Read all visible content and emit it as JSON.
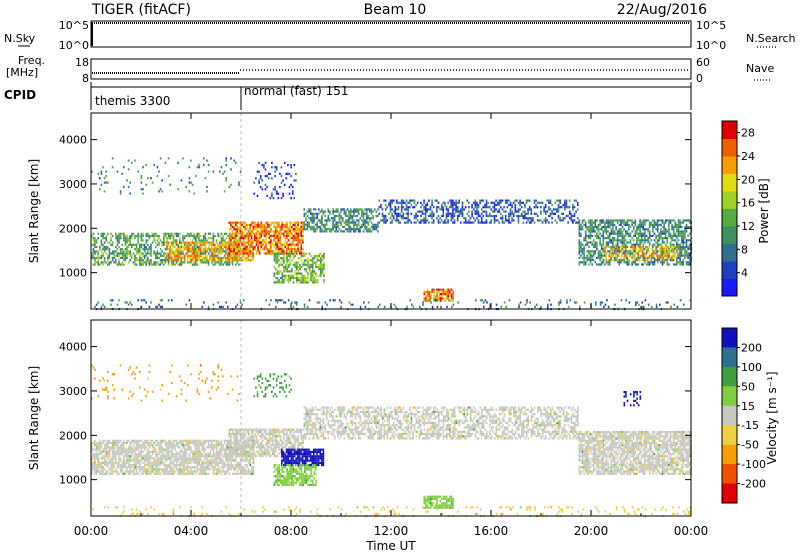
{
  "header": {
    "station": "TIGER (fitACF)",
    "beam": "Beam 10",
    "date": "22/Aug/2016"
  },
  "strip_panels": {
    "nsky": {
      "label": "N.Sky",
      "ticks_left": [
        "10^5",
        "10^0"
      ],
      "ticks_right": [
        "10^5",
        "10^0"
      ],
      "right_label": "N.Search",
      "log_scale": true
    },
    "freq": {
      "label_line1": "Freq.",
      "label_line2": "[MHz]",
      "ticks_left": [
        "18",
        "8"
      ],
      "ticks_right": [
        "60",
        "0"
      ],
      "right_label": "Nave"
    },
    "cpid": {
      "label": "CPID",
      "modes": [
        {
          "name": "themis",
          "id": "3300",
          "start_hour": 0,
          "end_hour": 6
        },
        {
          "name": "normal (fast)",
          "id": "151",
          "start_hour": 6,
          "end_hour": 24
        }
      ]
    }
  },
  "chart_data": [
    {
      "type": "heatmap",
      "title": "",
      "parameter": "Power",
      "ylabel": "Slant Range [km]",
      "xlabel": "",
      "xlim_hours": [
        0,
        24
      ],
      "ylim": [
        180,
        4600
      ],
      "ytick_values": [
        1000,
        2000,
        3000,
        4000
      ],
      "ytick_labels": [
        "1000",
        "2000",
        "3000",
        "4000"
      ],
      "colorbar": {
        "label": "Power [dB]",
        "ticks": [
          4,
          8,
          12,
          16,
          20,
          24,
          28
        ],
        "range": [
          0,
          30
        ],
        "stops": [
          "#1a1aff",
          "#1f3fbf",
          "#2f6f8f",
          "#3f8f5f",
          "#55aa40",
          "#9dd020",
          "#e0dd10",
          "#f5a000",
          "#f06000",
          "#e00000"
        ]
      },
      "regions": [
        {
          "t0": 0.0,
          "t1": 6.0,
          "r0": 1200,
          "r1": 1900,
          "value": 12,
          "density": 0.55
        },
        {
          "t0": 3.0,
          "t1": 6.5,
          "r0": 1300,
          "r1": 1700,
          "value": 22,
          "density": 0.7
        },
        {
          "t0": 5.5,
          "t1": 8.5,
          "r0": 1450,
          "r1": 2150,
          "value": 24,
          "density": 0.75
        },
        {
          "t0": 7.3,
          "t1": 9.3,
          "r0": 800,
          "r1": 1450,
          "value": 14,
          "density": 0.6
        },
        {
          "t0": 8.5,
          "t1": 11.5,
          "r0": 1950,
          "r1": 2450,
          "value": 10,
          "density": 0.6
        },
        {
          "t0": 11.5,
          "t1": 19.5,
          "r0": 2150,
          "r1": 2650,
          "value": 6,
          "density": 0.45
        },
        {
          "t0": 19.5,
          "t1": 24.0,
          "r0": 1200,
          "r1": 2200,
          "value": 10,
          "density": 0.6
        },
        {
          "t0": 20.5,
          "t1": 23.5,
          "r0": 1300,
          "r1": 1600,
          "value": 22,
          "density": 0.5
        },
        {
          "t0": 13.3,
          "t1": 14.5,
          "r0": 380,
          "r1": 640,
          "value": 24,
          "density": 0.8
        },
        {
          "t0": 6.5,
          "t1": 8.2,
          "r0": 2700,
          "r1": 3500,
          "value": 4,
          "density": 0.18
        },
        {
          "t0": 0.0,
          "t1": 24.0,
          "r0": 190,
          "r1": 400,
          "value": 8,
          "density": 0.12
        },
        {
          "t0": 0.0,
          "t1": 6.0,
          "r0": 2800,
          "r1": 3600,
          "value": 10,
          "density": 0.06
        }
      ]
    },
    {
      "type": "heatmap",
      "title": "",
      "parameter": "Velocity",
      "ylabel": "Slant Range [km]",
      "xlabel": "Time UT",
      "xlim_hours": [
        0,
        24
      ],
      "xtick_labels": [
        "00:00",
        "04:00",
        "08:00",
        "12:00",
        "16:00",
        "20:00",
        "00:00"
      ],
      "ylim": [
        180,
        4600
      ],
      "ytick_values": [
        1000,
        2000,
        3000,
        4000
      ],
      "ytick_labels": [
        "1000",
        "2000",
        "3000",
        "4000"
      ],
      "colorbar": {
        "label": "Velocity [m s⁻¹]",
        "ticks": [
          "200",
          "100",
          "50",
          "15",
          "-15",
          "-50",
          "-100",
          "-200"
        ],
        "bins": [
          {
            "value": 250,
            "color": "#1010c0"
          },
          {
            "value": 150,
            "color": "#2f6f8f"
          },
          {
            "value": 75,
            "color": "#3f9f3f"
          },
          {
            "value": 30,
            "color": "#7fd040"
          },
          {
            "value": 0,
            "color": "#c8c8c0"
          },
          {
            "value": -30,
            "color": "#f0d040"
          },
          {
            "value": -75,
            "color": "#f5a000"
          },
          {
            "value": -150,
            "color": "#f05000"
          },
          {
            "value": -250,
            "color": "#e00000"
          }
        ]
      },
      "regions": [
        {
          "t0": 0.0,
          "t1": 6.5,
          "r0": 1150,
          "r1": 1900,
          "value": 0,
          "density": 0.75
        },
        {
          "t0": 5.5,
          "t1": 8.5,
          "r0": 1550,
          "r1": 2150,
          "value": 0,
          "density": 0.7
        },
        {
          "t0": 7.6,
          "t1": 9.3,
          "r0": 1350,
          "r1": 1700,
          "value": 250,
          "density": 0.85
        },
        {
          "t0": 7.3,
          "t1": 9.0,
          "r0": 900,
          "r1": 1350,
          "value": 30,
          "density": 0.7
        },
        {
          "t0": 8.5,
          "t1": 19.5,
          "r0": 1950,
          "r1": 2650,
          "value": 0,
          "density": 0.55
        },
        {
          "t0": 19.5,
          "t1": 24.0,
          "r0": 1150,
          "r1": 2100,
          "value": 0,
          "density": 0.75
        },
        {
          "t0": 13.3,
          "t1": 14.5,
          "r0": 380,
          "r1": 640,
          "value": 30,
          "density": 0.8
        },
        {
          "t0": 6.5,
          "t1": 8.0,
          "r0": 2900,
          "r1": 3400,
          "value": 75,
          "density": 0.2
        },
        {
          "t0": 0.0,
          "t1": 24.0,
          "r0": 190,
          "r1": 400,
          "value": -30,
          "density": 0.12
        },
        {
          "t0": 0.0,
          "t1": 6.0,
          "r0": 2800,
          "r1": 3600,
          "value": -75,
          "density": 0.05
        },
        {
          "t0": 21.3,
          "t1": 22.0,
          "r0": 2700,
          "r1": 3000,
          "value": 250,
          "density": 0.3
        }
      ]
    }
  ]
}
